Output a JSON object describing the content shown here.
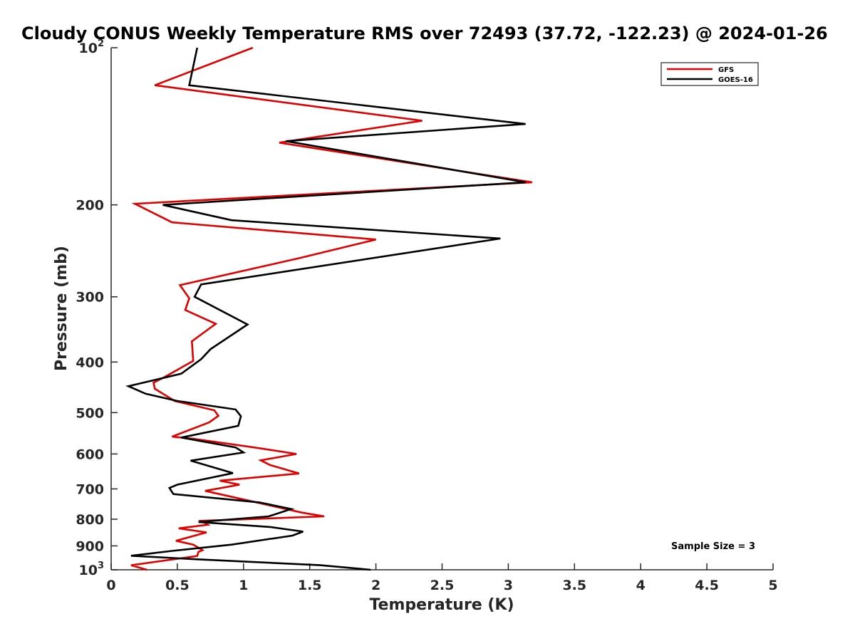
{
  "chart_data": {
    "type": "line",
    "title": "Cloudy CONUS Weekly Temperature RMS over 72493 (37.72, -122.23) @ 2024-01-26",
    "xlabel": "Temperature (K)",
    "ylabel": "Pressure (mb)",
    "xlim": [
      0,
      5
    ],
    "ylim": [
      1000,
      100
    ],
    "yscale": "log",
    "x_ticks": [
      "0",
      "0.5",
      "1",
      "1.5",
      "2",
      "2.5",
      "3",
      "3.5",
      "4",
      "4.5",
      "5"
    ],
    "y_ticks": [
      {
        "p": 100,
        "label": "10",
        "exp": "2"
      },
      {
        "p": 200,
        "label": "200",
        "exp": ""
      },
      {
        "p": 300,
        "label": "300",
        "exp": ""
      },
      {
        "p": 400,
        "label": "400",
        "exp": ""
      },
      {
        "p": 500,
        "label": "500",
        "exp": ""
      },
      {
        "p": 600,
        "label": "600",
        "exp": ""
      },
      {
        "p": 700,
        "label": "700",
        "exp": ""
      },
      {
        "p": 800,
        "label": "800",
        "exp": ""
      },
      {
        "p": 900,
        "label": "900",
        "exp": ""
      },
      {
        "p": 1000,
        "label": "10",
        "exp": "3"
      }
    ],
    "legend_position": "top-right",
    "annotation": "Sample Size = 3",
    "series": [
      {
        "name": "GFS",
        "color": "#e00000",
        "points": [
          [
            1.07,
            100
          ],
          [
            0.33,
            118
          ],
          [
            2.35,
            138
          ],
          [
            1.27,
            152
          ],
          [
            3.18,
            181
          ],
          [
            0.18,
            199
          ],
          [
            0.46,
            216
          ],
          [
            2.0,
            233
          ],
          [
            1.42,
            253
          ],
          [
            0.52,
            285
          ],
          [
            0.59,
            302
          ],
          [
            0.56,
            318
          ],
          [
            0.79,
            338
          ],
          [
            0.61,
            365
          ],
          [
            0.62,
            398
          ],
          [
            0.4,
            428
          ],
          [
            0.32,
            438
          ],
          [
            0.33,
            450
          ],
          [
            0.48,
            475
          ],
          [
            0.78,
            495
          ],
          [
            0.81,
            507
          ],
          [
            0.74,
            522
          ],
          [
            0.46,
            556
          ],
          [
            0.62,
            561
          ],
          [
            1.12,
            585
          ],
          [
            1.4,
            600
          ],
          [
            1.13,
            617
          ],
          [
            1.2,
            630
          ],
          [
            1.42,
            654
          ],
          [
            0.82,
            675
          ],
          [
            0.97,
            687
          ],
          [
            0.71,
            706
          ],
          [
            1.12,
            745
          ],
          [
            1.44,
            777
          ],
          [
            1.61,
            790
          ],
          [
            0.68,
            806
          ],
          [
            0.73,
            820
          ],
          [
            0.51,
            833
          ],
          [
            0.72,
            848
          ],
          [
            0.49,
            880
          ],
          [
            0.62,
            895
          ],
          [
            0.69,
            917
          ],
          [
            0.66,
            924
          ],
          [
            0.65,
            941
          ],
          [
            0.15,
            980
          ],
          [
            0.27,
            1000
          ]
        ]
      },
      {
        "name": "GOES-16",
        "color": "#000000",
        "points": [
          [
            0.65,
            100
          ],
          [
            0.59,
            118
          ],
          [
            3.13,
            140
          ],
          [
            1.32,
            151
          ],
          [
            3.13,
            181
          ],
          [
            0.39,
            200
          ],
          [
            0.91,
            214
          ],
          [
            2.94,
            232
          ],
          [
            0.68,
            284
          ],
          [
            0.63,
            300
          ],
          [
            1.03,
            339
          ],
          [
            0.75,
            378
          ],
          [
            0.68,
            395
          ],
          [
            0.53,
            421
          ],
          [
            0.13,
            445
          ],
          [
            0.26,
            460
          ],
          [
            0.5,
            475
          ],
          [
            0.94,
            493
          ],
          [
            0.98,
            508
          ],
          [
            0.96,
            530
          ],
          [
            0.53,
            558
          ],
          [
            0.94,
            583
          ],
          [
            1.0,
            596
          ],
          [
            0.6,
            618
          ],
          [
            0.92,
            653
          ],
          [
            0.5,
            687
          ],
          [
            0.44,
            697
          ],
          [
            0.47,
            716
          ],
          [
            1.12,
            743
          ],
          [
            1.36,
            765
          ],
          [
            1.19,
            790
          ],
          [
            0.66,
            810
          ],
          [
            1.2,
            828
          ],
          [
            1.45,
            845
          ],
          [
            1.37,
            860
          ],
          [
            0.91,
            895
          ],
          [
            0.46,
            920
          ],
          [
            0.15,
            940
          ],
          [
            0.65,
            955
          ],
          [
            1.58,
            980
          ],
          [
            1.96,
            1000
          ]
        ]
      }
    ]
  }
}
